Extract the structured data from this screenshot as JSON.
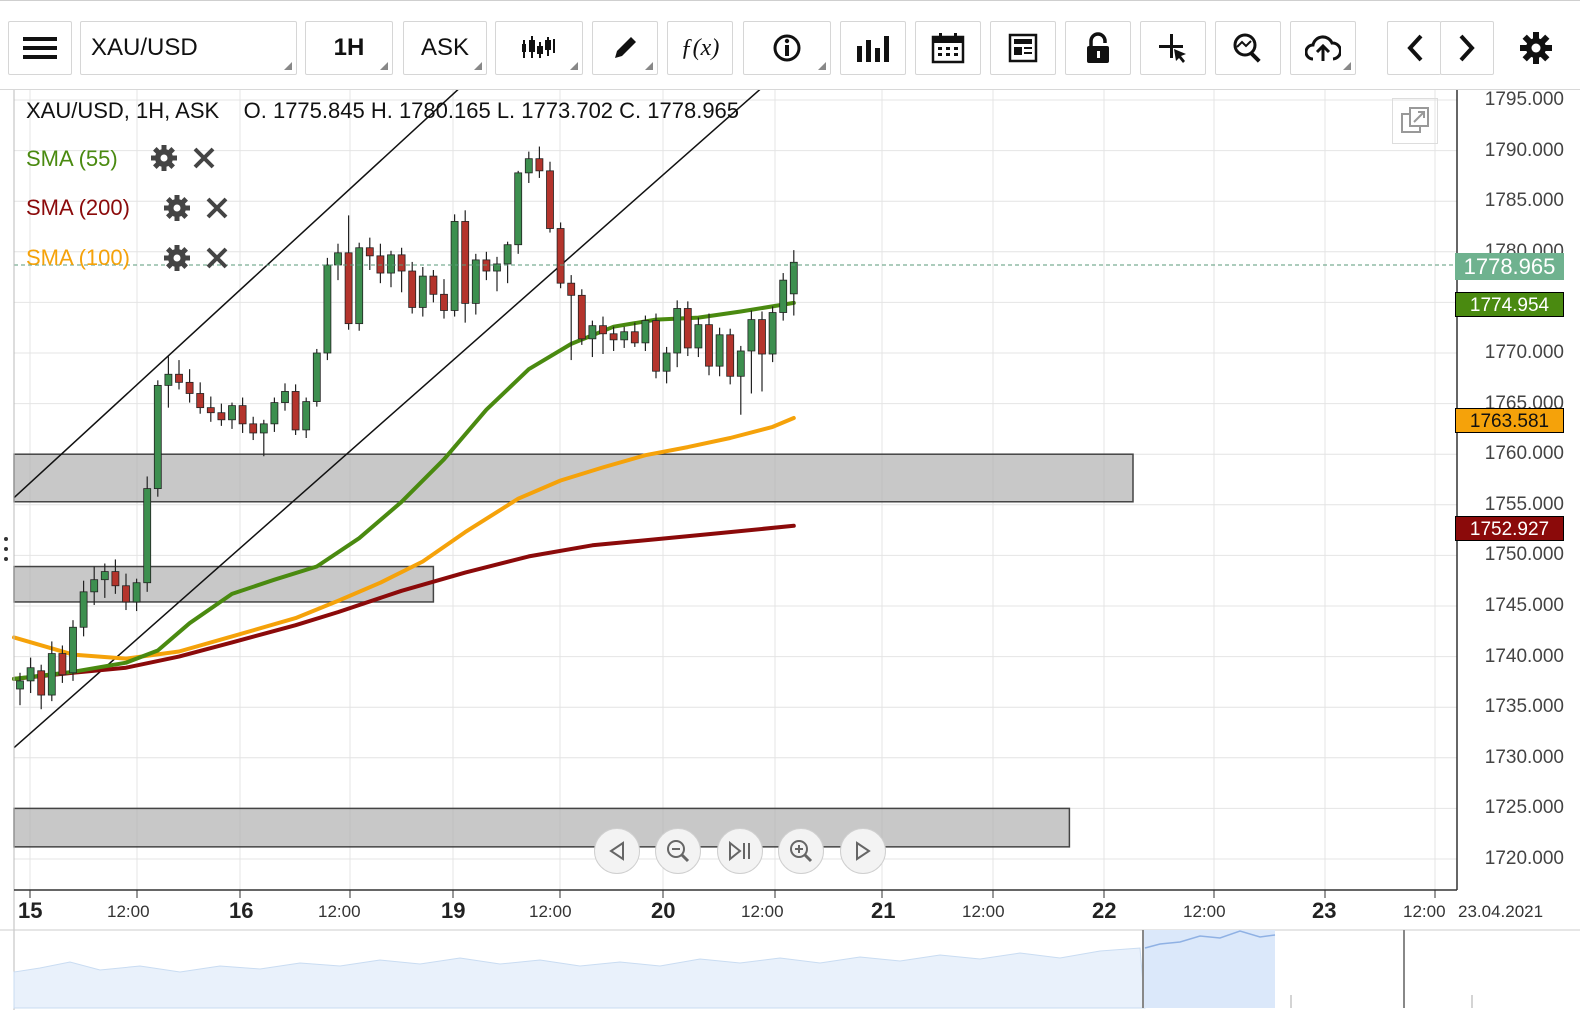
{
  "toolbar": {
    "symbol": "XAU/USD",
    "interval": "1H",
    "price_type": "ASK",
    "icons": [
      "menu-icon",
      "candlestick-icon",
      "pencil-icon",
      "function-icon",
      "info-icon",
      "bar-chart-icon",
      "calendar-icon",
      "news-icon",
      "lock-icon",
      "crosshair-icon",
      "zoom-icon",
      "cloud-upload-icon",
      "chevron-left-icon",
      "chevron-right-icon",
      "gear-icon"
    ]
  },
  "ohlc_header": "XAU/USD, 1H, ASK    O. 1775.845 H. 1780.165 L. 1773.702 C. 1778.965",
  "indicators": [
    {
      "label": "SMA (55)",
      "color": "#4a8a10"
    },
    {
      "label": "SMA (200)",
      "color": "#8b0a0a"
    },
    {
      "label": "SMA (100)",
      "color": "#f5a20a"
    }
  ],
  "price_axis": [
    "1795.000",
    "1790.000",
    "1785.000",
    "1780.000",
    "1775.000",
    "1770.000",
    "1765.000",
    "1760.000",
    "1755.000",
    "1750.000",
    "1745.000",
    "1740.000",
    "1735.000",
    "1730.000",
    "1725.000",
    "1720.000"
  ],
  "tags": {
    "last": "1778.965",
    "sma55": "1774.954",
    "sma100": "1763.581",
    "sma200": "1752.927"
  },
  "time_axis": {
    "days": [
      "15",
      "16",
      "19",
      "20",
      "21",
      "22",
      "23"
    ],
    "hour": "12:00",
    "end_date": "23.04.2021"
  },
  "chart_data": {
    "type": "candlestick",
    "symbol": "XAU/USD",
    "interval": "1H",
    "ylim": [
      1718,
      1797
    ],
    "last_close": 1778.965,
    "ohlc_last": {
      "open": 1775.845,
      "high": 1780.165,
      "low": 1773.702,
      "close": 1778.965
    },
    "candles": [
      [
        1736.8,
        1738.4,
        1735.2,
        1737.6
      ],
      [
        1737.6,
        1739.9,
        1736.4,
        1738.9
      ],
      [
        1738.6,
        1739.2,
        1734.8,
        1736.2
      ],
      [
        1736.2,
        1741.5,
        1735.6,
        1740.3
      ],
      [
        1740.3,
        1741.1,
        1737.4,
        1738.2
      ],
      [
        1738.4,
        1743.6,
        1737.6,
        1742.9
      ],
      [
        1742.9,
        1747.5,
        1742.0,
        1746.4
      ],
      [
        1746.4,
        1748.9,
        1745.1,
        1747.6
      ],
      [
        1747.6,
        1749.2,
        1745.8,
        1748.4
      ],
      [
        1748.4,
        1749.6,
        1746.2,
        1747.0
      ],
      [
        1747.0,
        1748.2,
        1744.6,
        1745.4
      ],
      [
        1745.4,
        1747.7,
        1744.5,
        1747.3
      ],
      [
        1747.3,
        1757.8,
        1746.4,
        1756.6
      ],
      [
        1756.6,
        1767.3,
        1755.8,
        1766.8
      ],
      [
        1766.8,
        1769.7,
        1764.6,
        1767.9
      ],
      [
        1767.9,
        1769.3,
        1766.4,
        1767.1
      ],
      [
        1767.1,
        1768.4,
        1765.1,
        1766.0
      ],
      [
        1766.0,
        1767.1,
        1764.0,
        1764.6
      ],
      [
        1764.6,
        1765.7,
        1763.2,
        1764.1
      ],
      [
        1764.1,
        1765.0,
        1762.8,
        1763.4
      ],
      [
        1763.4,
        1765.1,
        1762.5,
        1764.8
      ],
      [
        1764.8,
        1765.6,
        1762.1,
        1763.0
      ],
      [
        1763.0,
        1763.7,
        1761.4,
        1762.1
      ],
      [
        1762.1,
        1763.4,
        1759.8,
        1763.0
      ],
      [
        1763.0,
        1765.6,
        1762.2,
        1765.1
      ],
      [
        1765.1,
        1767.0,
        1764.3,
        1766.2
      ],
      [
        1766.2,
        1766.9,
        1761.9,
        1762.4
      ],
      [
        1762.4,
        1765.6,
        1761.6,
        1765.2
      ],
      [
        1765.2,
        1770.4,
        1764.7,
        1770.0
      ],
      [
        1770.0,
        1779.4,
        1769.3,
        1778.7
      ],
      [
        1778.7,
        1780.8,
        1777.2,
        1779.9
      ],
      [
        1779.9,
        1783.6,
        1772.3,
        1772.9
      ],
      [
        1772.9,
        1780.9,
        1772.2,
        1780.4
      ],
      [
        1780.4,
        1781.4,
        1778.2,
        1779.6
      ],
      [
        1779.6,
        1780.8,
        1776.9,
        1777.9
      ],
      [
        1777.9,
        1780.1,
        1776.5,
        1779.7
      ],
      [
        1779.7,
        1780.4,
        1776.0,
        1778.1
      ],
      [
        1778.1,
        1779.0,
        1773.9,
        1774.5
      ],
      [
        1774.5,
        1778.5,
        1773.6,
        1777.6
      ],
      [
        1777.6,
        1778.2,
        1775.0,
        1775.8
      ],
      [
        1775.8,
        1777.3,
        1773.4,
        1774.2
      ],
      [
        1774.2,
        1783.7,
        1773.6,
        1783.0
      ],
      [
        1783.0,
        1784.1,
        1773.0,
        1774.9
      ],
      [
        1774.9,
        1779.8,
        1773.8,
        1779.2
      ],
      [
        1779.2,
        1780.0,
        1777.2,
        1778.1
      ],
      [
        1778.1,
        1779.5,
        1776.1,
        1778.8
      ],
      [
        1778.8,
        1781.0,
        1776.9,
        1780.7
      ],
      [
        1780.7,
        1788.0,
        1779.8,
        1787.8
      ],
      [
        1787.8,
        1789.9,
        1786.8,
        1789.2
      ],
      [
        1789.2,
        1790.4,
        1787.3,
        1788.0
      ],
      [
        1788.0,
        1788.9,
        1781.9,
        1782.3
      ],
      [
        1782.3,
        1782.9,
        1776.4,
        1776.9
      ],
      [
        1776.9,
        1777.7,
        1769.3,
        1775.7
      ],
      [
        1775.7,
        1776.3,
        1770.8,
        1771.4
      ],
      [
        1771.4,
        1773.2,
        1769.6,
        1772.7
      ],
      [
        1772.7,
        1773.6,
        1769.9,
        1771.9
      ],
      [
        1771.9,
        1772.6,
        1770.2,
        1771.3
      ],
      [
        1771.3,
        1772.6,
        1770.5,
        1772.1
      ],
      [
        1772.1,
        1773.0,
        1770.6,
        1771.0
      ],
      [
        1771.0,
        1773.7,
        1770.2,
        1773.2
      ],
      [
        1773.2,
        1773.9,
        1767.5,
        1768.2
      ],
      [
        1768.2,
        1770.6,
        1767.0,
        1770.0
      ],
      [
        1770.0,
        1775.2,
        1768.6,
        1774.4
      ],
      [
        1774.4,
        1775.1,
        1769.7,
        1770.5
      ],
      [
        1770.5,
        1773.5,
        1769.6,
        1772.8
      ],
      [
        1772.8,
        1773.9,
        1767.8,
        1768.7
      ],
      [
        1768.7,
        1772.5,
        1767.7,
        1771.8
      ],
      [
        1771.8,
        1772.4,
        1766.9,
        1767.7
      ],
      [
        1767.7,
        1770.7,
        1763.9,
        1770.2
      ],
      [
        1770.2,
        1774.2,
        1766.0,
        1773.3
      ],
      [
        1773.3,
        1774.1,
        1766.2,
        1769.9
      ],
      [
        1769.9,
        1774.6,
        1769.1,
        1774.0
      ],
      [
        1774.0,
        1777.9,
        1773.2,
        1777.2
      ],
      [
        1775.845,
        1780.165,
        1773.702,
        1778.965
      ]
    ],
    "sma55": [
      [
        0,
        1737.8
      ],
      [
        5,
        1738.5
      ],
      [
        10,
        1739.4
      ],
      [
        13,
        1740.6
      ],
      [
        16,
        1743.3
      ],
      [
        20,
        1746.2
      ],
      [
        24,
        1747.6
      ],
      [
        28,
        1748.9
      ],
      [
        32,
        1751.7
      ],
      [
        36,
        1755.3
      ],
      [
        40,
        1759.5
      ],
      [
        44,
        1764.4
      ],
      [
        48,
        1768.4
      ],
      [
        52,
        1770.9
      ],
      [
        56,
        1772.6
      ],
      [
        60,
        1773.3
      ],
      [
        64,
        1773.5
      ],
      [
        68,
        1774.1
      ],
      [
        73,
        1774.954
      ]
    ],
    "sma100": [
      [
        0,
        1741.9
      ],
      [
        5,
        1740.2
      ],
      [
        10,
        1739.8
      ],
      [
        15,
        1740.5
      ],
      [
        20,
        1742.0
      ],
      [
        26,
        1743.8
      ],
      [
        30,
        1745.5
      ],
      [
        34,
        1747.3
      ],
      [
        38,
        1749.4
      ],
      [
        42,
        1752.3
      ],
      [
        47,
        1755.6
      ],
      [
        51,
        1757.4
      ],
      [
        55,
        1758.7
      ],
      [
        59,
        1759.9
      ],
      [
        63,
        1760.7
      ],
      [
        67,
        1761.6
      ],
      [
        71,
        1762.7
      ],
      [
        73,
        1763.581
      ]
    ],
    "sma200": [
      [
        0,
        1737.8
      ],
      [
        5,
        1738.4
      ],
      [
        10,
        1738.9
      ],
      [
        15,
        1740.0
      ],
      [
        20,
        1741.4
      ],
      [
        26,
        1743.1
      ],
      [
        30,
        1744.4
      ],
      [
        36,
        1746.5
      ],
      [
        42,
        1748.3
      ],
      [
        48,
        1749.9
      ],
      [
        54,
        1751.0
      ],
      [
        60,
        1751.6
      ],
      [
        66,
        1752.2
      ],
      [
        73,
        1752.927
      ]
    ],
    "trend_channel": [
      [
        [
          0,
          1755.7
        ],
        [
          47,
          1801.5
        ]
      ],
      [
        [
          0,
          1731.0
        ],
        [
          73,
          1799.0
        ]
      ]
    ],
    "zones": [
      [
        1755.3,
        1760.0,
        0,
        105
      ],
      [
        1745.4,
        1748.9,
        0,
        39
      ],
      [
        1721.2,
        1725.0,
        0,
        99
      ]
    ]
  }
}
